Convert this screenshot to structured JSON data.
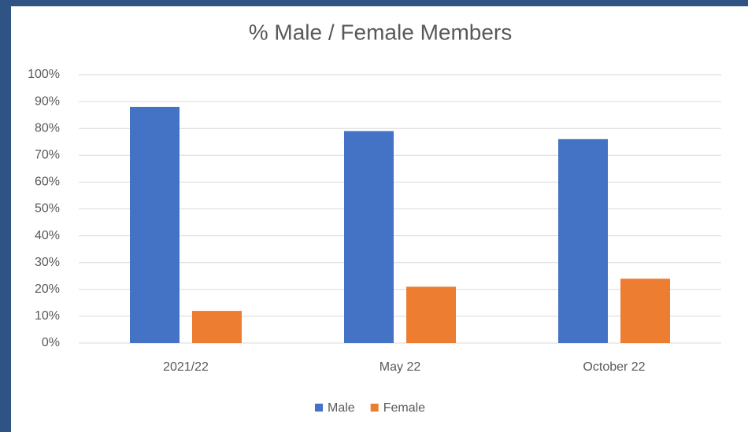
{
  "chart_data": {
    "type": "bar",
    "title": "% Male / Female Members",
    "categories": [
      "2021/22",
      "May 22",
      "October 22"
    ],
    "series": [
      {
        "name": "Male",
        "color": "#4472c4",
        "values": [
          88,
          79,
          76
        ]
      },
      {
        "name": "Female",
        "color": "#ed7d31",
        "values": [
          12,
          21,
          24
        ]
      }
    ],
    "ylim": [
      0,
      100
    ],
    "yticks": [
      {
        "value": 0,
        "label": "0%"
      },
      {
        "value": 10,
        "label": "10%"
      },
      {
        "value": 20,
        "label": "20%"
      },
      {
        "value": 30,
        "label": "30%"
      },
      {
        "value": 40,
        "label": "40%"
      },
      {
        "value": 50,
        "label": "50%"
      },
      {
        "value": 60,
        "label": "60%"
      },
      {
        "value": 70,
        "label": "70%"
      },
      {
        "value": 80,
        "label": "80%"
      },
      {
        "value": 90,
        "label": "90%"
      },
      {
        "value": 100,
        "label": "100%"
      }
    ],
    "grid": true,
    "legend": "bottom"
  }
}
